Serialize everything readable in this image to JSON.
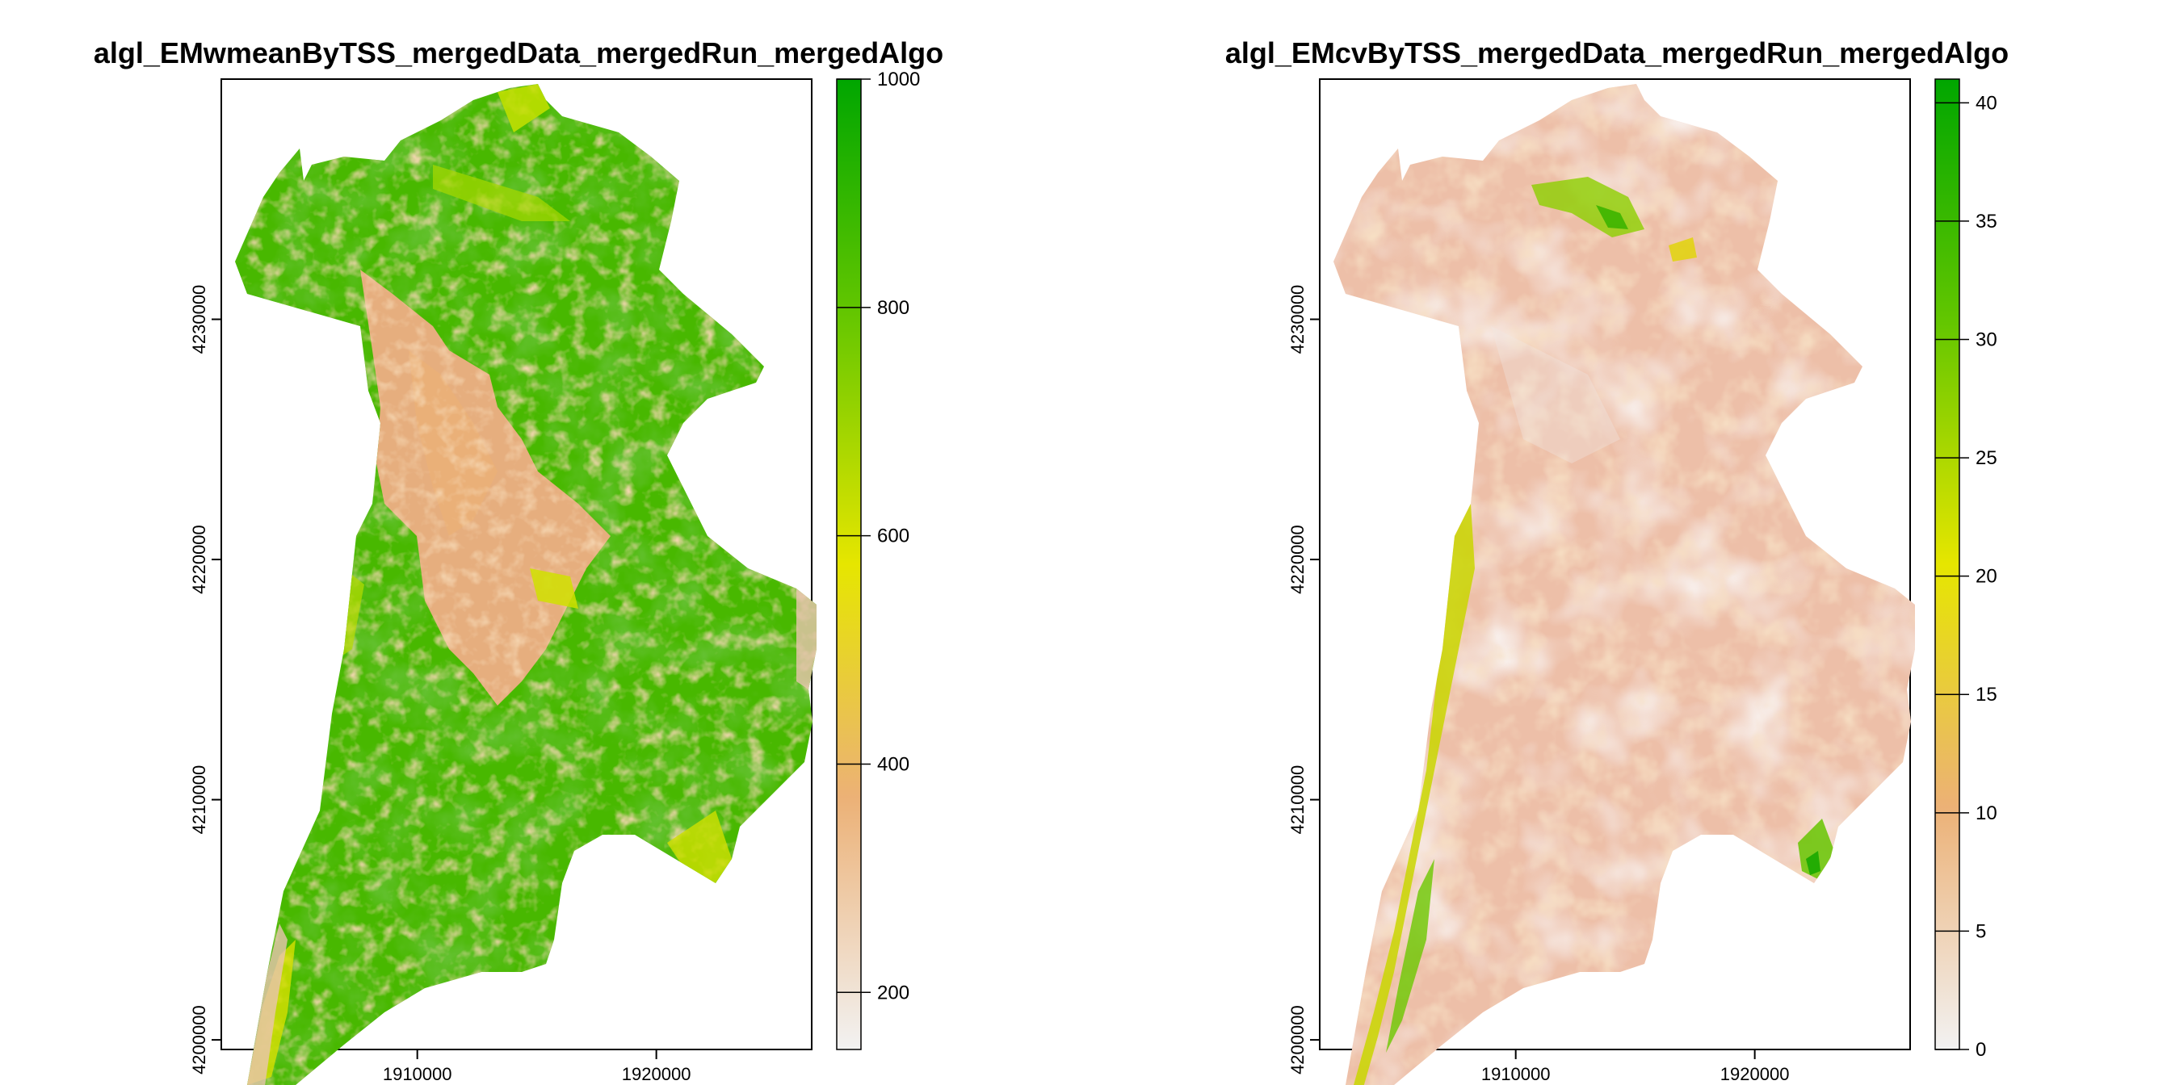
{
  "chart_data": [
    {
      "type": "heatmap",
      "title": "algl_EMwmeanByTSS_mergedData_mergedRun_mergedAlgo",
      "x_ticks": [
        1910000,
        1920000
      ],
      "y_ticks": [
        4200000,
        4210000,
        4220000,
        4230000
      ],
      "x_range": [
        1901800,
        1926500
      ],
      "y_range": [
        4199600,
        4240000
      ],
      "colorbar": {
        "range": [
          150,
          1000
        ],
        "ticks": [
          200,
          400,
          600,
          800,
          1000
        ],
        "palette": [
          "#F2F2F2",
          "#ECB176",
          "#E6E600",
          "#63C600",
          "#00A600"
        ]
      }
    },
    {
      "type": "heatmap",
      "title": "algl_EMcvByTSS_mergedData_mergedRun_mergedAlgo",
      "x_ticks": [
        1910000,
        1920000
      ],
      "y_ticks": [
        4200000,
        4210000,
        4220000,
        4230000
      ],
      "x_range": [
        1901800,
        1926500
      ],
      "y_range": [
        4199600,
        4240000
      ],
      "colorbar": {
        "range": [
          0,
          41
        ],
        "ticks": [
          0,
          5,
          10,
          15,
          20,
          25,
          30,
          35,
          40
        ],
        "palette": [
          "#F2F2F2",
          "#ECB176",
          "#E6E600",
          "#63C600",
          "#00A600"
        ]
      }
    }
  ]
}
